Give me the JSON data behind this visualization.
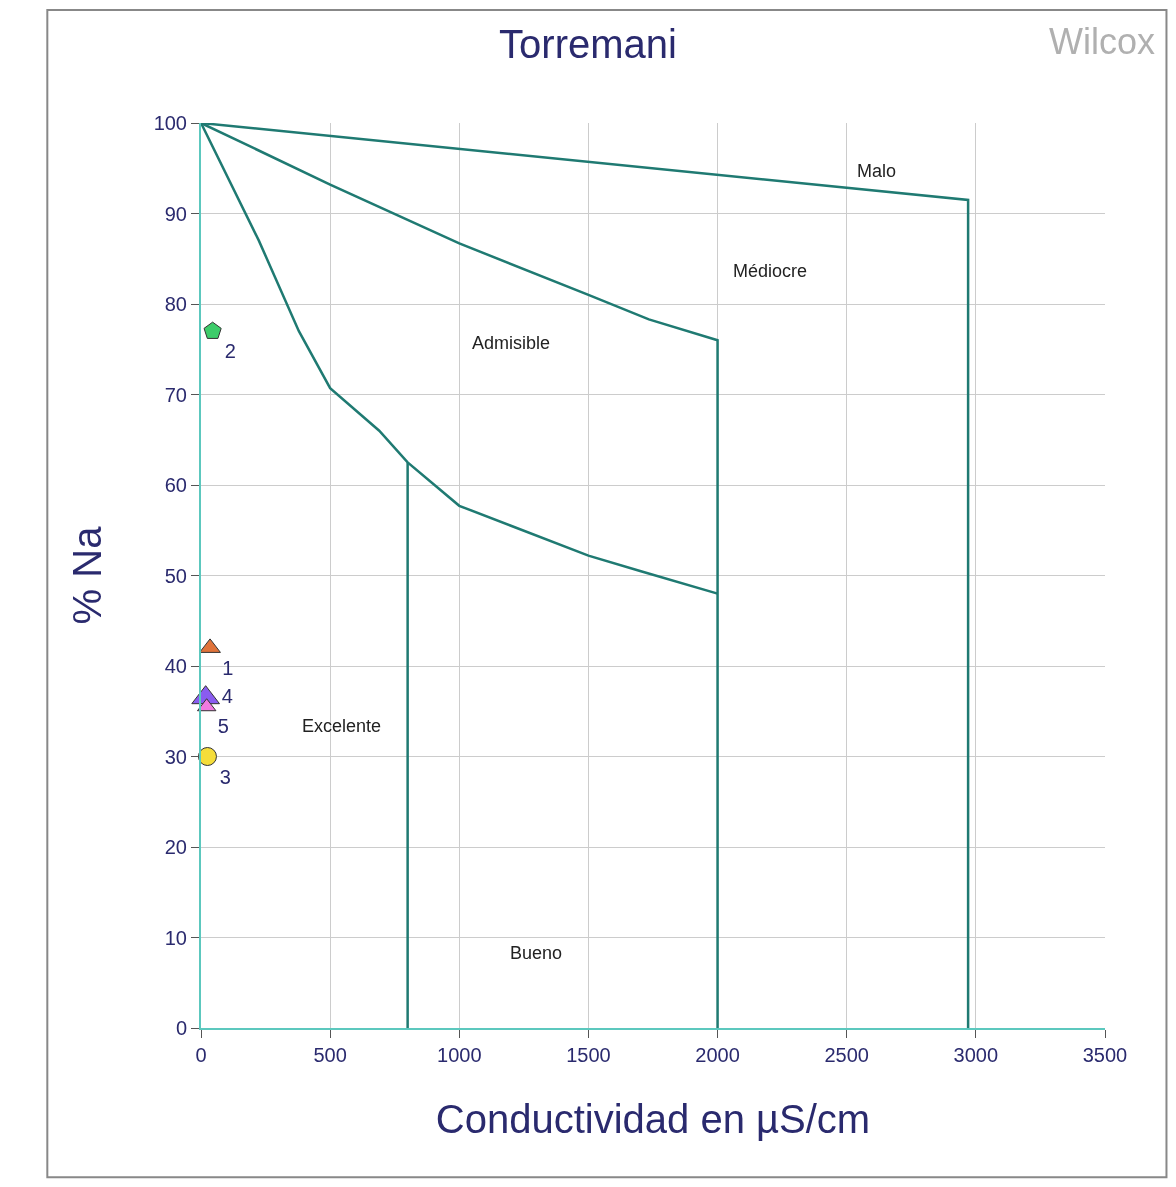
{
  "chart_data": {
    "type": "scatter",
    "title": "Torremani",
    "xlabel": "Conductividad en µS/cm",
    "ylabel": "% Na",
    "xlim": [
      0,
      3500
    ],
    "xticks": [
      0,
      500,
      1000,
      1500,
      2000,
      2500,
      3000,
      3500
    ],
    "ylim": [
      0,
      100
    ],
    "yticks": [
      0,
      10,
      20,
      30,
      40,
      50,
      60,
      70,
      80,
      90,
      100
    ],
    "grid": true,
    "legend": false,
    "line_style": "solid",
    "series": [
      {
        "type": "line",
        "color": "#1f7a72",
        "x": [
          0,
          224,
          379,
          500,
          690,
          800,
          1000,
          1200,
          1500,
          1700,
          2000
        ],
        "values": [
          100,
          87,
          77,
          70.7,
          66,
          62.5,
          57.7,
          55.5,
          52.2,
          50.5,
          48
        ]
      },
      {
        "type": "line",
        "color": "#1f7a72",
        "x": [
          800,
          800
        ],
        "values": [
          62.5,
          0
        ]
      },
      {
        "type": "line",
        "color": "#1f7a72",
        "x": [
          0,
          500,
          1000,
          1500,
          1734,
          2000,
          2000
        ],
        "values": [
          100,
          93.2,
          86.7,
          81,
          78.3,
          76,
          0
        ]
      },
      {
        "type": "line",
        "color": "#1f7a72",
        "x": [
          0,
          2970,
          2970
        ],
        "values": [
          100,
          91.5,
          0
        ]
      },
      {
        "name": "1",
        "marker": "triangle",
        "color": "#e0733a",
        "x": [
          35
        ],
        "values": [
          42
        ]
      },
      {
        "name": "2",
        "color": "#3dcc6a",
        "x": [
          45
        ],
        "values": [
          77
        ]
      },
      {
        "name": "3",
        "marker": "circle",
        "color": "#f5dd3a",
        "x": [
          25
        ],
        "values": [
          30
        ]
      },
      {
        "name": "4",
        "marker": "triangle",
        "color": "#8a5cf0",
        "x": [
          18
        ],
        "values": [
          36.5
        ]
      },
      {
        "name": "5",
        "marker": "triangle",
        "color": "#f07ae0",
        "x": [
          22
        ],
        "values": [
          35.5
        ]
      }
    ],
    "annotations": [
      "Malo",
      "Médiocre",
      "Admisible",
      "Excelente",
      "Bueno",
      "Wilcox"
    ]
  }
}
